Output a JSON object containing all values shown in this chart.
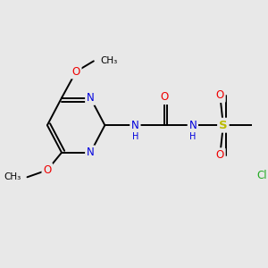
{
  "bg_color": "#e8e8e8",
  "atom_colors": {
    "C": "#000000",
    "N": "#0000dd",
    "O": "#ee0000",
    "S": "#bbbb00",
    "Cl": "#22aa22",
    "H": "#555555"
  },
  "bond_color": "#000000",
  "figsize": [
    3.0,
    3.0
  ],
  "dpi": 100
}
